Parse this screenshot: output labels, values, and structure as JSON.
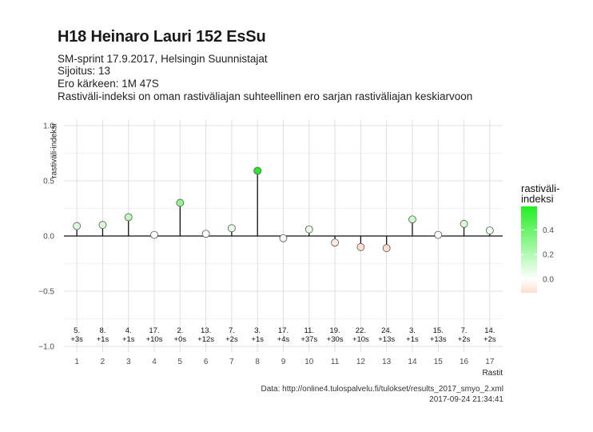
{
  "header": {
    "title": "H18 Heinaro Lauri 152 EsSu",
    "line1": "SM-sprint 17.9.2017, Helsingin Suunnistajat",
    "line2": "Sijoitus: 13",
    "line3": "Ero kärkeen: 1M 47S",
    "line4": "Rastiväli-indeksi on oman rastiväliajan suhteellinen ero sarjan rastiväliajan keskiarvoon"
  },
  "caption": {
    "line1": "Data: http://online4.tulospalvelu.fi/tulokset/results_2017_smyo_2.xml",
    "line2": "2017-09-24 21:34:41"
  },
  "chart_data": {
    "type": "scatter",
    "style": "lollipop",
    "xlabel": "Rastit",
    "ylabel": "rastiväli-indeksi",
    "ylim": [
      -1.05,
      1.05
    ],
    "yticks": [
      -1.0,
      -0.5,
      0.0,
      0.5,
      1.0
    ],
    "ytick_labels": [
      "−1.0",
      "−0.5",
      "0.0",
      "0.5",
      "1.0"
    ],
    "grid": true,
    "x": [
      1,
      2,
      3,
      4,
      5,
      6,
      7,
      8,
      9,
      10,
      11,
      12,
      13,
      14,
      15,
      16,
      17
    ],
    "values": [
      0.09,
      0.1,
      0.17,
      0.01,
      0.3,
      0.02,
      0.07,
      0.59,
      -0.02,
      0.06,
      -0.06,
      -0.1,
      -0.11,
      0.15,
      0.01,
      0.11,
      0.05
    ],
    "labels": [
      [
        "5.",
        "+3s"
      ],
      [
        "8.",
        "+1s"
      ],
      [
        "4.",
        "+1s"
      ],
      [
        "17.",
        "+10s"
      ],
      [
        "2.",
        "+0s"
      ],
      [
        "13.",
        "+12s"
      ],
      [
        "7.",
        "+2s"
      ],
      [
        "3.",
        "+1s"
      ],
      [
        "17.",
        "+4s"
      ],
      [
        "11.",
        "+37s"
      ],
      [
        "19.",
        "+30s"
      ],
      [
        "22.",
        "+10s"
      ],
      [
        "24.",
        "+13s"
      ],
      [
        "3.",
        "+1s"
      ],
      [
        "15.",
        "+13s"
      ],
      [
        "7.",
        "+2s"
      ],
      [
        "14.",
        "+2s"
      ]
    ],
    "legend": {
      "title_line1": "rastiväli-",
      "title_line2": "indeksi",
      "position": "right",
      "ticks": [
        "0.4",
        "0.2",
        "0.0"
      ],
      "tick_values": [
        0.4,
        0.2,
        0.0
      ],
      "range": [
        -0.11,
        0.59
      ],
      "color_low": "#ffdccd",
      "color_mid": "#ffffff",
      "color_high": "#22ee22"
    }
  }
}
